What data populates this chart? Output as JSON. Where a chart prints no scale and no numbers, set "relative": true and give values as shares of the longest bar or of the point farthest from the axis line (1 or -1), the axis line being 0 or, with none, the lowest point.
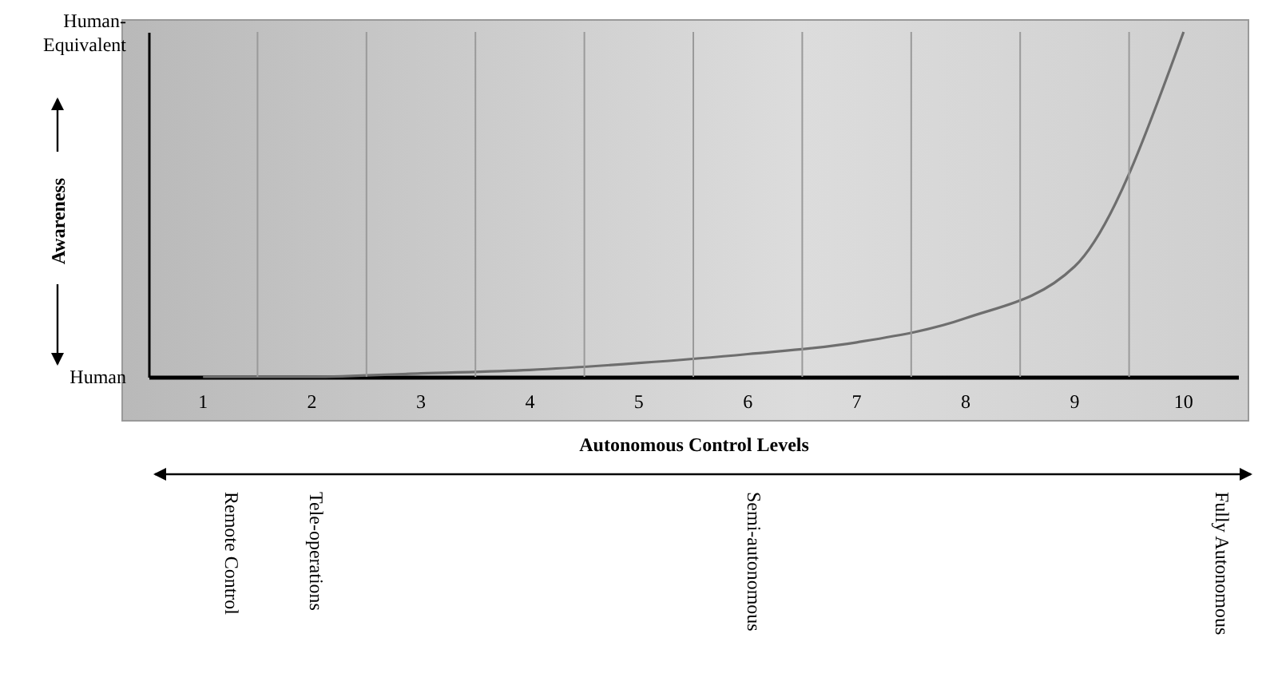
{
  "chart_data": {
    "type": "line",
    "relative": true,
    "xlabel": "Autonomous Control Levels",
    "ylabel": "Awareness",
    "grid": "x",
    "marker": "none",
    "categories": [
      "1",
      "2",
      "3",
      "4",
      "5",
      "6",
      "7",
      "8",
      "9",
      "10"
    ],
    "series": [
      {
        "color": "#6e6e6e",
        "values": [
          0,
          0,
          0.01,
          0.02,
          0.04,
          0.066,
          0.1,
          0.17,
          0.32,
          1
        ]
      }
    ],
    "annotations": [
      "Human-Equivalent",
      "Human",
      "Remote Control",
      "Tele-operations",
      "Semi-autonomous",
      "Fully Autonomous"
    ]
  }
}
